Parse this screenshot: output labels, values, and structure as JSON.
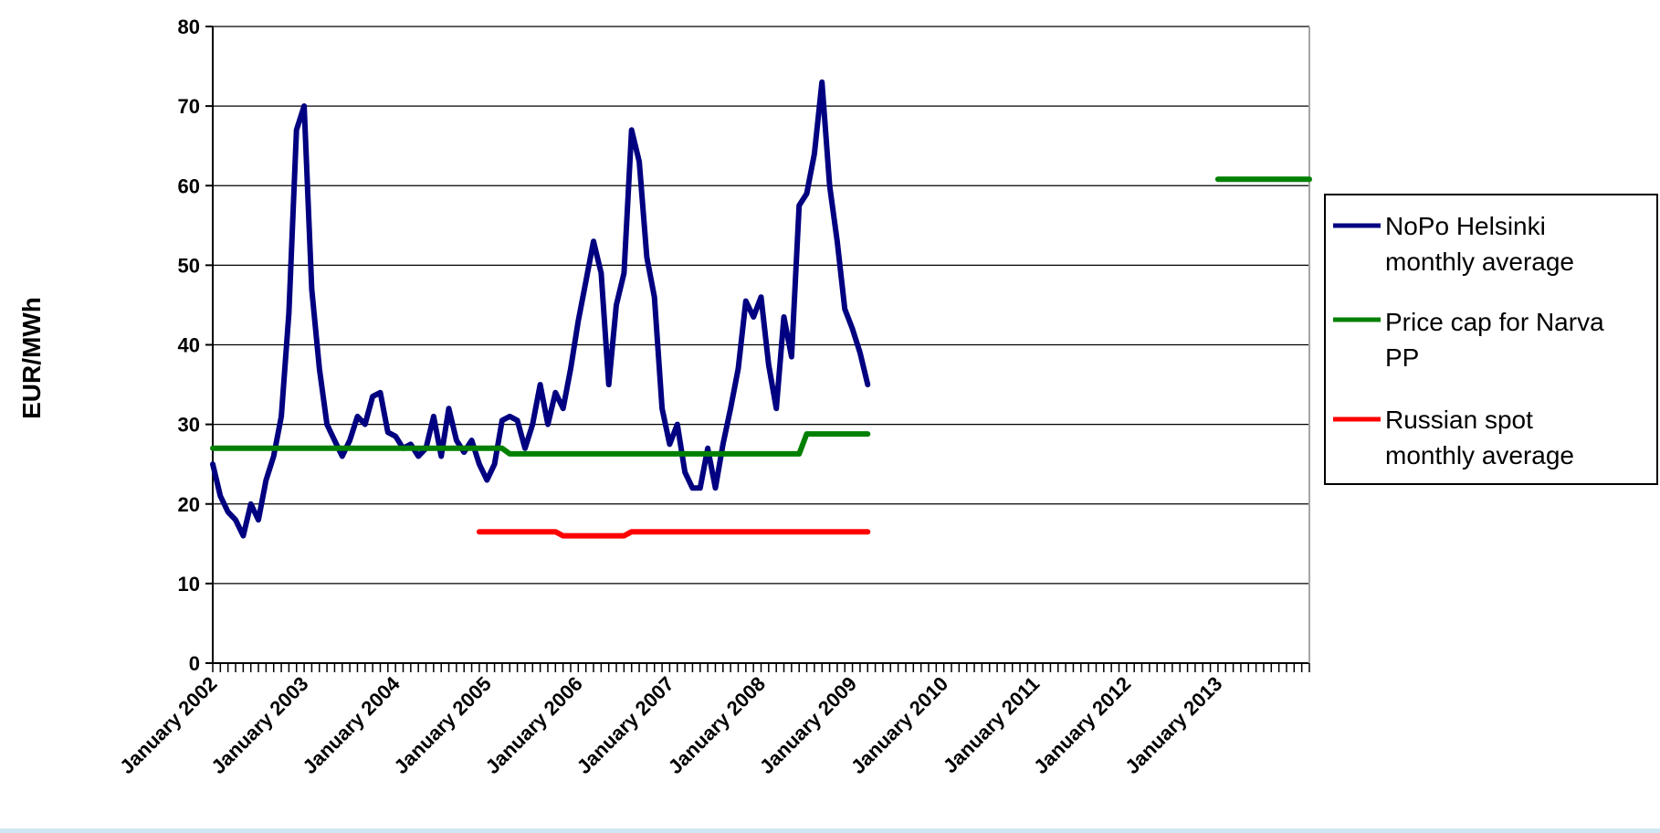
{
  "chart_data": {
    "type": "line",
    "title": "",
    "xlabel": "",
    "ylabel": "EUR/MWh",
    "ylim": [
      0,
      80
    ],
    "yticks": [
      0,
      10,
      20,
      30,
      40,
      50,
      60,
      70,
      80
    ],
    "xlim": [
      "2002-01",
      "2014-01"
    ],
    "xtick_labels": [
      "January 2002",
      "January 2003",
      "January 2004",
      "January 2005",
      "January 2006",
      "January 2007",
      "January 2008",
      "January 2009",
      "January 2010",
      "January 2011",
      "January 2012",
      "January 2013"
    ],
    "grid": "horizontal",
    "legend": "right",
    "series": [
      {
        "name": "NoPo Helsinki monthly average",
        "color": "#000080",
        "points": [
          [
            "2002-01",
            25
          ],
          [
            "2002-02",
            21
          ],
          [
            "2002-03",
            19
          ],
          [
            "2002-04",
            18
          ],
          [
            "2002-05",
            16
          ],
          [
            "2002-06",
            20
          ],
          [
            "2002-07",
            18
          ],
          [
            "2002-08",
            23
          ],
          [
            "2002-09",
            26
          ],
          [
            "2002-10",
            31
          ],
          [
            "2002-11",
            44
          ],
          [
            "2002-12",
            67
          ],
          [
            "2003-01",
            70
          ],
          [
            "2003-02",
            47
          ],
          [
            "2003-03",
            37
          ],
          [
            "2003-04",
            30
          ],
          [
            "2003-05",
            28
          ],
          [
            "2003-06",
            26
          ],
          [
            "2003-07",
            28
          ],
          [
            "2003-08",
            31
          ],
          [
            "2003-09",
            30
          ],
          [
            "2003-10",
            33.5
          ],
          [
            "2003-11",
            34
          ],
          [
            "2003-12",
            29
          ],
          [
            "2004-01",
            28.5
          ],
          [
            "2004-02",
            27
          ],
          [
            "2004-03",
            27.5
          ],
          [
            "2004-04",
            26
          ],
          [
            "2004-05",
            27
          ],
          [
            "2004-06",
            31
          ],
          [
            "2004-07",
            26
          ],
          [
            "2004-08",
            32
          ],
          [
            "2004-09",
            28
          ],
          [
            "2004-10",
            26.5
          ],
          [
            "2004-11",
            28
          ],
          [
            "2004-12",
            25
          ],
          [
            "2005-01",
            23
          ],
          [
            "2005-02",
            25
          ],
          [
            "2005-03",
            30.5
          ],
          [
            "2005-04",
            31
          ],
          [
            "2005-05",
            30.5
          ],
          [
            "2005-06",
            27
          ],
          [
            "2005-07",
            30
          ],
          [
            "2005-08",
            35
          ],
          [
            "2005-09",
            30
          ],
          [
            "2005-10",
            34
          ],
          [
            "2005-11",
            32
          ],
          [
            "2005-12",
            37
          ],
          [
            "2006-01",
            43
          ],
          [
            "2006-02",
            48
          ],
          [
            "2006-03",
            53
          ],
          [
            "2006-04",
            49
          ],
          [
            "2006-05",
            35
          ],
          [
            "2006-06",
            45
          ],
          [
            "2006-07",
            49
          ],
          [
            "2006-08",
            67
          ],
          [
            "2006-09",
            63
          ],
          [
            "2006-10",
            51
          ],
          [
            "2006-11",
            46
          ],
          [
            "2006-12",
            32
          ],
          [
            "2007-01",
            27.5
          ],
          [
            "2007-02",
            30
          ],
          [
            "2007-03",
            24
          ],
          [
            "2007-04",
            22
          ],
          [
            "2007-05",
            22
          ],
          [
            "2007-06",
            27
          ],
          [
            "2007-07",
            22
          ],
          [
            "2007-08",
            27.5
          ],
          [
            "2007-09",
            32
          ],
          [
            "2007-10",
            37
          ],
          [
            "2007-11",
            45.5
          ],
          [
            "2007-12",
            43.5
          ],
          [
            "2008-01",
            46
          ],
          [
            "2008-02",
            37.5
          ],
          [
            "2008-03",
            32
          ],
          [
            "2008-04",
            43.5
          ],
          [
            "2008-05",
            38.5
          ],
          [
            "2008-06",
            57.5
          ],
          [
            "2008-07",
            59
          ],
          [
            "2008-08",
            64
          ],
          [
            "2008-09",
            73
          ],
          [
            "2008-10",
            60
          ],
          [
            "2008-11",
            53
          ],
          [
            "2008-12",
            44.5
          ],
          [
            "2009-01",
            42
          ],
          [
            "2009-02",
            39
          ],
          [
            "2009-03",
            35
          ]
        ]
      },
      {
        "name": "Price cap for Narva PP",
        "color": "#008000",
        "points": [
          [
            "2002-01",
            27
          ],
          [
            "2005-03",
            27
          ],
          [
            "2005-04",
            26.3
          ],
          [
            "2008-06",
            26.3
          ],
          [
            "2008-07",
            28.8
          ],
          [
            "2009-03",
            28.8
          ]
        ],
        "extra_segment": [
          [
            "2013-01",
            60.8
          ],
          [
            "2014-01",
            60.8
          ]
        ]
      },
      {
        "name": "Russian spot monthly average",
        "color": "#ff0000",
        "points": [
          [
            "2004-12",
            16.5
          ],
          [
            "2005-10",
            16.5
          ],
          [
            "2005-11",
            16
          ],
          [
            "2006-07",
            16
          ],
          [
            "2006-08",
            16.5
          ],
          [
            "2009-03",
            16.5
          ]
        ]
      }
    ]
  }
}
